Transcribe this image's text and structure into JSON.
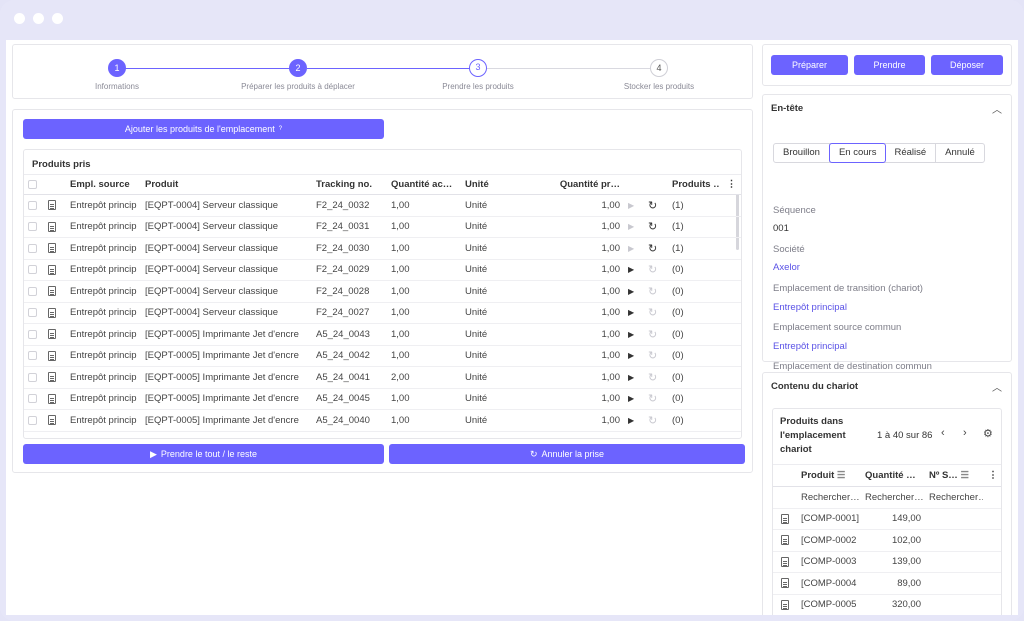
{
  "steps": [
    {
      "number": "1",
      "label": "Informations",
      "state": "done"
    },
    {
      "number": "2",
      "label": "Préparer les produits à déplacer",
      "state": "done"
    },
    {
      "number": "3",
      "label": "Prendre les produits",
      "state": "active"
    },
    {
      "number": "4",
      "label": "Stocker les produits",
      "state": "todo"
    }
  ],
  "main": {
    "add_button": "Ajouter les produits de l'emplacement",
    "add_button_help": "?",
    "grid_title": "Produits pris",
    "columns": [
      "Empl. source",
      "Produit",
      "Tracking no.",
      "Quantité ac…",
      "Unité",
      "Quantité pr…",
      "Produits …"
    ],
    "rows": [
      {
        "source": "Entrepôt princip",
        "product": "[EQPT-0004] Serveur classique",
        "tracking": "F2_24_0032",
        "qty_a": "1,00",
        "unit": "Unité",
        "qty_p": "1,00",
        "products": "(1)",
        "taken": true
      },
      {
        "source": "Entrepôt princip",
        "product": "[EQPT-0004] Serveur classique",
        "tracking": "F2_24_0031",
        "qty_a": "1,00",
        "unit": "Unité",
        "qty_p": "1,00",
        "products": "(1)",
        "taken": true
      },
      {
        "source": "Entrepôt princip",
        "product": "[EQPT-0004] Serveur classique",
        "tracking": "F2_24_0030",
        "qty_a": "1,00",
        "unit": "Unité",
        "qty_p": "1,00",
        "products": "(1)",
        "taken": true
      },
      {
        "source": "Entrepôt princip",
        "product": "[EQPT-0004] Serveur classique",
        "tracking": "F2_24_0029",
        "qty_a": "1,00",
        "unit": "Unité",
        "qty_p": "1,00",
        "products": "(0)",
        "taken": false
      },
      {
        "source": "Entrepôt princip",
        "product": "[EQPT-0004] Serveur classique",
        "tracking": "F2_24_0028",
        "qty_a": "1,00",
        "unit": "Unité",
        "qty_p": "1,00",
        "products": "(0)",
        "taken": false
      },
      {
        "source": "Entrepôt princip",
        "product": "[EQPT-0004] Serveur classique",
        "tracking": "F2_24_0027",
        "qty_a": "1,00",
        "unit": "Unité",
        "qty_p": "1,00",
        "products": "(0)",
        "taken": false
      },
      {
        "source": "Entrepôt princip",
        "product": "[EQPT-0005] Imprimante Jet d'encre",
        "tracking": "A5_24_0043",
        "qty_a": "1,00",
        "unit": "Unité",
        "qty_p": "1,00",
        "products": "(0)",
        "taken": false
      },
      {
        "source": "Entrepôt princip",
        "product": "[EQPT-0005] Imprimante Jet d'encre",
        "tracking": "A5_24_0042",
        "qty_a": "1,00",
        "unit": "Unité",
        "qty_p": "1,00",
        "products": "(0)",
        "taken": false
      },
      {
        "source": "Entrepôt princip",
        "product": "[EQPT-0005] Imprimante Jet d'encre",
        "tracking": "A5_24_0041",
        "qty_a": "2,00",
        "unit": "Unité",
        "qty_p": "1,00",
        "products": "(0)",
        "taken": false
      },
      {
        "source": "Entrepôt princip",
        "product": "[EQPT-0005] Imprimante Jet d'encre",
        "tracking": "A5_24_0045",
        "qty_a": "1,00",
        "unit": "Unité",
        "qty_p": "1,00",
        "products": "(0)",
        "taken": false
      },
      {
        "source": "Entrepôt princip",
        "product": "[EQPT-0005] Imprimante Jet d'encre",
        "tracking": "A5_24_0040",
        "qty_a": "1,00",
        "unit": "Unité",
        "qty_p": "1,00",
        "products": "(0)",
        "taken": false
      }
    ],
    "take_all_button": "Prendre le tout / le reste",
    "cancel_button": "Annuler la prise"
  },
  "actions": {
    "prepare": "Préparer",
    "take": "Prendre",
    "drop": "Déposer"
  },
  "header": {
    "title": "En-tête",
    "statuses": [
      "Brouillon",
      "En cours",
      "Réalisé",
      "Annulé"
    ],
    "selected_status": "En cours",
    "sequence_label": "Séquence",
    "sequence_value": "001",
    "company_label": "Société",
    "company_value": "Axelor",
    "transit_label": "Emplacement de transition (chariot)",
    "transit_value": "Entrepôt principal",
    "source_label": "Emplacement source commun",
    "source_value": "Entrepôt principal",
    "dest_label": "Emplacement de destination commun"
  },
  "cart": {
    "title": "Contenu du chariot",
    "sub_title": "Produits dans l'emplacement chariot",
    "pager": "1 à 40 sur 86",
    "columns": [
      "Produit",
      "Quantité …",
      "Nº S…"
    ],
    "search_placeholder": "Rechercher…",
    "rows": [
      {
        "product": "[COMP-0001]",
        "qty": "149,00"
      },
      {
        "product": "[COMP-0002",
        "qty": "102,00"
      },
      {
        "product": "[COMP-0003",
        "qty": "139,00"
      },
      {
        "product": "[COMP-0004",
        "qty": "89,00"
      },
      {
        "product": "[COMP-0005",
        "qty": "320,00"
      }
    ]
  },
  "colors": {
    "accent": "#6c63ff",
    "frame": "#e6e6f8"
  }
}
